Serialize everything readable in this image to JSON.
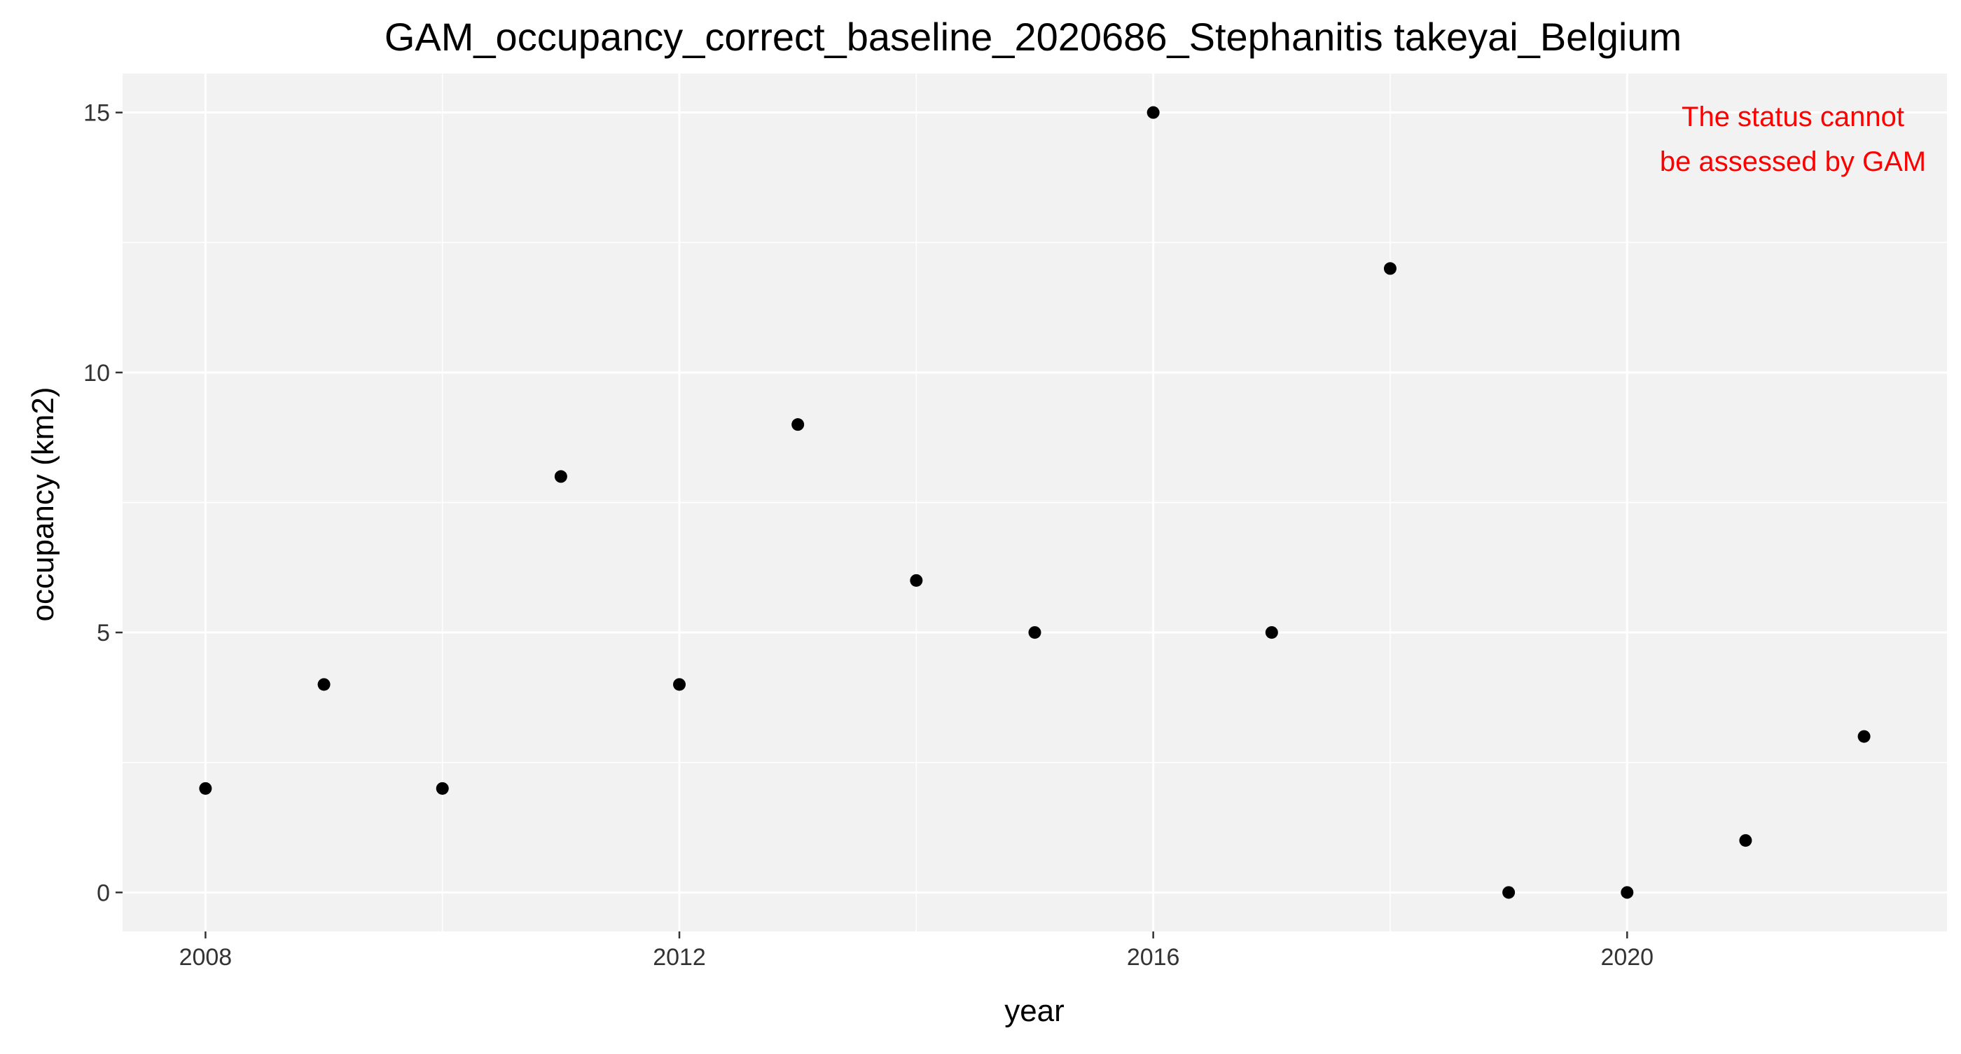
{
  "chart_data": {
    "type": "scatter",
    "title": "GAM_occupancy_correct_baseline_2020686_Stephanitis takeyai_Belgium",
    "xlabel": "year",
    "ylabel": "occupancy (km2)",
    "x": [
      2008,
      2009,
      2010,
      2011,
      2012,
      2013,
      2014,
      2015,
      2016,
      2017,
      2018,
      2019,
      2020,
      2021,
      2022
    ],
    "y": [
      2,
      4,
      2,
      8,
      4,
      9,
      6,
      5,
      15,
      5,
      12,
      0,
      0,
      1,
      3
    ],
    "xlim": [
      2007.3,
      2022.7
    ],
    "ylim": [
      -0.75,
      15.75
    ],
    "x_ticks": [
      2008,
      2012,
      2016,
      2020
    ],
    "y_ticks": [
      0,
      5,
      10,
      15
    ],
    "x_tick_labels": [
      "2008",
      "2012",
      "2016",
      "2020"
    ],
    "y_tick_labels": [
      "0",
      "5",
      "10",
      "15"
    ],
    "grid": true,
    "legend": "none",
    "point_color": "#000000",
    "panel_background": "#f2f2f2",
    "grid_color": "#ffffff",
    "annotation": {
      "lines": [
        "The status cannot",
        "be assessed by GAM"
      ],
      "color": "#ff0000",
      "placement": "top-right"
    }
  }
}
